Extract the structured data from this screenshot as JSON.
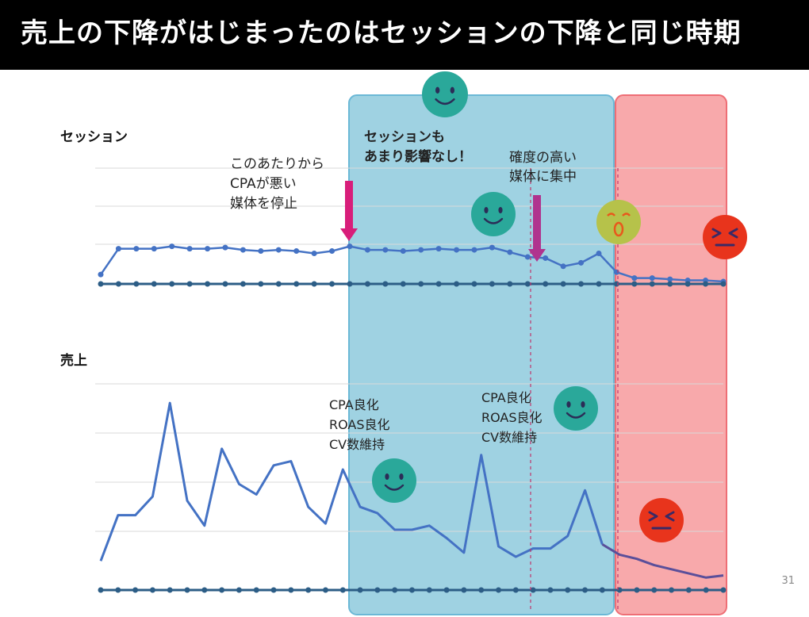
{
  "slide": {
    "title": "売上の下降がはじまったのはセッションの下降と同じ時期",
    "page_number": "31"
  },
  "colors": {
    "header_bg": "#000000",
    "line": "#4472c4",
    "line_dark": "#5a4f9a",
    "baseline": "#2c5d86",
    "blue_region": "#9fd2e2",
    "blue_region_border": "#6bb8d6",
    "red_region": "#f79a9c",
    "red_region_border": "#ee6e75",
    "arrow_red": "#d81e7a",
    "arrow_purple": "#b0338e",
    "happy_face": "#2aa89a",
    "worried_face": "#b6c24a",
    "angry_face": "#e8341c"
  },
  "annotations": {
    "stop_cpa": [
      "このあたりから",
      "CPAが悪い",
      "媒体を停止"
    ],
    "session_ok": [
      "セッションも",
      "あまり影響なし！"
    ],
    "focus_media": [
      "確度の高い",
      "媒体に集中"
    ],
    "improvement_1": [
      "CPA良化",
      "ROAS良化",
      "CV数維持"
    ],
    "improvement_2": [
      "CPA良化",
      "ROAS良化",
      "CV数維持"
    ]
  },
  "icons": {
    "happy": "smiley-face-icon",
    "worried": "worried-face-icon",
    "angry": "angry-face-icon",
    "arrow": "down-arrow-icon"
  },
  "chart_data": [
    {
      "type": "line",
      "title": "セッション",
      "grid": true,
      "ylim": [
        0,
        100
      ],
      "x": [
        1,
        2,
        3,
        4,
        5,
        6,
        7,
        8,
        9,
        10,
        11,
        12,
        13,
        14,
        15,
        16,
        17,
        18,
        19,
        20,
        21,
        22,
        23,
        24,
        25,
        26,
        27,
        28,
        29,
        30,
        31,
        32,
        33,
        34,
        35,
        36
      ],
      "series": [
        {
          "values": [
            8,
            30,
            30,
            30,
            32,
            30,
            30,
            31,
            29,
            28,
            29,
            28,
            26,
            28,
            32,
            29,
            29,
            28,
            29,
            30,
            29,
            29,
            31,
            27,
            23,
            22,
            15,
            18,
            26,
            10,
            5,
            5,
            4,
            3,
            3,
            2
          ]
        },
        {
          "values": [
            0,
            0,
            0,
            0,
            0,
            0,
            0,
            0,
            0,
            0,
            0,
            0,
            0,
            0,
            0,
            0,
            0,
            0,
            0,
            0,
            0,
            0,
            0,
            0,
            0,
            0,
            0,
            0,
            0,
            0,
            0,
            0,
            0,
            0,
            0,
            0
          ]
        }
      ]
    },
    {
      "type": "line",
      "title": "売上",
      "grid": true,
      "ylim": [
        0,
        100
      ],
      "x": [
        1,
        2,
        3,
        4,
        5,
        6,
        7,
        8,
        9,
        10,
        11,
        12,
        13,
        14,
        15,
        16,
        17,
        18,
        19,
        20,
        21,
        22,
        23,
        24,
        25,
        26,
        27,
        28,
        29,
        30,
        31,
        32,
        33,
        34,
        35,
        36,
        37
      ],
      "series": [
        {
          "values": [
            14,
            36,
            36,
            45,
            90,
            43,
            31,
            68,
            51,
            46,
            60,
            62,
            40,
            32,
            58,
            40,
            37,
            29,
            29,
            31,
            25,
            18,
            65,
            21,
            16,
            20,
            20,
            26,
            48,
            22,
            17,
            15,
            12,
            10,
            8,
            6,
            7
          ]
        },
        {
          "values": [
            0,
            0,
            0,
            0,
            0,
            0,
            0,
            0,
            0,
            0,
            0,
            0,
            0,
            0,
            0,
            0,
            0,
            0,
            0,
            0,
            0,
            0,
            0,
            0,
            0,
            0,
            0,
            0,
            0,
            0,
            0,
            0,
            0,
            0,
            0,
            0,
            0
          ]
        }
      ]
    }
  ]
}
